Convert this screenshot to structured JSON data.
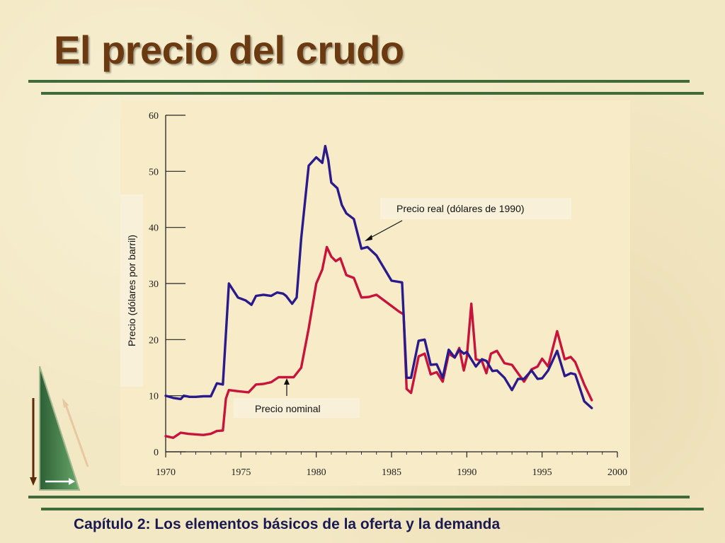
{
  "slide": {
    "title": "El precio del crudo",
    "footer": "Capítulo 2: Los elementos básicos de la oferta y la demanda"
  },
  "colors": {
    "title": "#6b3a10",
    "rule": "#3f6b3b",
    "footer": "#1a1a50",
    "real_series": "#2a1a8c",
    "nominal_series": "#c8143c",
    "plot_bg": "#f8ecc8",
    "label_bg": "#f8f0d8"
  },
  "icons": [
    "triangle-logo-icon",
    "arrow-down-icon",
    "arrow-right-icon",
    "arrow-up-icon"
  ],
  "chart_data": {
    "type": "line",
    "title": "",
    "xlabel": "",
    "ylabel": "Precio (dólares por barril)",
    "xlim": [
      1970,
      2000
    ],
    "ylim": [
      0,
      60
    ],
    "xticks": [
      1970,
      1975,
      1980,
      1985,
      1990,
      1995,
      2000
    ],
    "yticks": [
      0,
      10,
      20,
      30,
      40,
      50,
      60
    ],
    "grid": false,
    "series": [
      {
        "name": "Precio real (dólares de 1990)",
        "color": "#2a1a8c",
        "x": [
          1970,
          1970.5,
          1971,
          1971.2,
          1971.6,
          1972,
          1972.5,
          1973,
          1973.4,
          1973.8,
          1974.2,
          1974.8,
          1975.3,
          1975.7,
          1976,
          1976.5,
          1977,
          1977.4,
          1977.8,
          1978,
          1978.4,
          1978.7,
          1979,
          1979.5,
          1980,
          1980.4,
          1980.6,
          1980.8,
          1981,
          1981.4,
          1981.7,
          1982,
          1982.5,
          1983,
          1983.4,
          1984,
          1985,
          1985.7,
          1986,
          1986.3,
          1986.8,
          1987.2,
          1987.6,
          1988,
          1988.4,
          1988.8,
          1989.2,
          1989.5,
          1989.8,
          1990,
          1990.3,
          1990.6,
          1991,
          1991.3,
          1991.7,
          1992,
          1992.5,
          1993,
          1993.4,
          1993.8,
          1994.3,
          1994.7,
          1995,
          1995.4,
          1996,
          1996.5,
          1996.9,
          1997.2,
          1997.8,
          1998.3
        ],
        "values": [
          10,
          9.6,
          9.4,
          10,
          9.8,
          9.8,
          9.9,
          9.9,
          12.2,
          12,
          30,
          27.5,
          27,
          26.2,
          27.8,
          28,
          27.8,
          28.4,
          28.2,
          27.8,
          26.4,
          27.5,
          38,
          51,
          52.5,
          51.5,
          54.5,
          52,
          48,
          47,
          44,
          42.5,
          41.5,
          36.2,
          36.5,
          35,
          30.5,
          30.2,
          13.2,
          13.2,
          19.8,
          20,
          15.5,
          15.6,
          13.2,
          18.2,
          16.8,
          18.2,
          17.5,
          17.8,
          16.5,
          15.2,
          16.5,
          16.2,
          14.4,
          14.5,
          13.2,
          11,
          13,
          13,
          14.5,
          13,
          13.1,
          14.5,
          18,
          13.5,
          14,
          13.8,
          9,
          7.8
        ]
      },
      {
        "name": "Precio nominal",
        "color": "#c8143c",
        "x": [
          1970,
          1970.5,
          1971,
          1971.5,
          1972,
          1972.5,
          1973,
          1973.4,
          1973.8,
          1974,
          1974.2,
          1974.8,
          1975.5,
          1976,
          1976.5,
          1977,
          1977.5,
          1978,
          1978.5,
          1979,
          1979.5,
          1980,
          1980.4,
          1980.7,
          1981,
          1981.3,
          1981.6,
          1982,
          1982.5,
          1983,
          1983.5,
          1984,
          1985,
          1985.5,
          1985.8,
          1986,
          1986.3,
          1986.8,
          1987.2,
          1987.6,
          1988,
          1988.4,
          1988.8,
          1989.2,
          1989.5,
          1989.8,
          1990,
          1990.3,
          1990.6,
          1991,
          1991.3,
          1991.6,
          1992,
          1992.5,
          1993,
          1993.4,
          1993.8,
          1994.3,
          1994.7,
          1995,
          1995.4,
          1996,
          1996.5,
          1996.9,
          1997.2,
          1997.8,
          1998.3
        ],
        "values": [
          2.8,
          2.5,
          3.4,
          3.2,
          3.1,
          3.0,
          3.2,
          3.7,
          3.8,
          9.5,
          11,
          10.8,
          10.6,
          12,
          12.1,
          12.4,
          13.3,
          13.3,
          13.3,
          15,
          22,
          30,
          32.5,
          36.5,
          34.8,
          34,
          34.5,
          31.5,
          31,
          27.5,
          27.6,
          28,
          26,
          25,
          24.5,
          11.2,
          10.5,
          17,
          17.5,
          13.8,
          14.2,
          12.5,
          17.5,
          16.8,
          18.5,
          14.5,
          16.8,
          26.4,
          16.5,
          16.2,
          14,
          17.5,
          18,
          15.8,
          15.5,
          14,
          12.5,
          14.7,
          15.2,
          16.6,
          15.2,
          21.5,
          16.5,
          16.9,
          16,
          12,
          9.2
        ]
      }
    ],
    "annotations": [
      {
        "text": "Precio real (dólares de 1990)",
        "series": 0,
        "arrow_to_x": 1983.2,
        "arrow_to_y": 37.2
      },
      {
        "text": "Precio nominal",
        "series": 1,
        "arrow_to_x": 1978.0,
        "arrow_to_y": 13.8
      }
    ]
  }
}
